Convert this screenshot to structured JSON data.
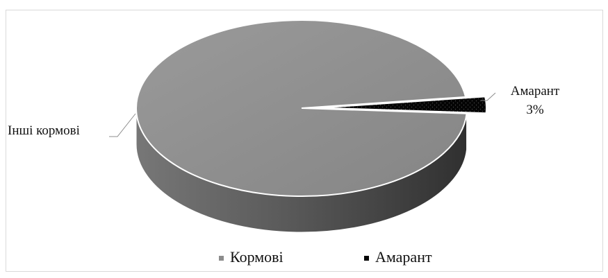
{
  "chart_data": {
    "type": "pie",
    "style": "3d",
    "title": "",
    "categories": [
      "Кормові",
      "Амарант"
    ],
    "values": [
      97,
      3
    ],
    "colors": [
      "#8c8c8c",
      "#050505"
    ],
    "data_labels": {
      "feed": "Інші кормові",
      "amaranth_name": "Амарант",
      "amaranth_value": "3%"
    },
    "legend": {
      "position": "bottom",
      "entries": [
        "Кормові",
        "Амарант"
      ]
    }
  }
}
